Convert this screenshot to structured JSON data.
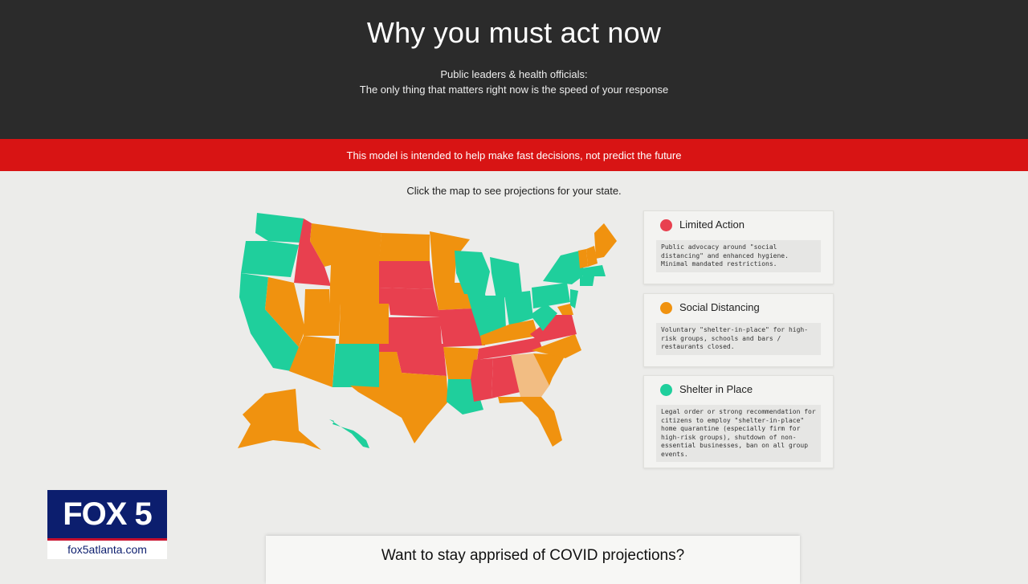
{
  "header": {
    "title": "Why you must act now",
    "subtitle_line1": "Public leaders & health officials:",
    "subtitle_line2": "The only thing that matters right now is the speed of your response"
  },
  "banner": {
    "text": "This model is intended to help make fast decisions, not predict the future"
  },
  "map": {
    "instruction": "Click the map to see projections for your state.",
    "colors": {
      "limited": "#e8404f",
      "social": "#f0920f",
      "shelter": "#1fcf9c",
      "pending": "#f2bd83"
    }
  },
  "legend": [
    {
      "title": "Limited Action",
      "color": "#e8404f",
      "description": "Public advocacy around \"social distancing\" and enhanced hygiene. Minimal mandated restrictions."
    },
    {
      "title": "Social Distancing",
      "color": "#f0920f",
      "description": "Voluntary \"shelter-in-place\" for high-risk groups, schools and bars / restaurants closed."
    },
    {
      "title": "Shelter in Place",
      "color": "#1fcf9c",
      "description": "Legal order or strong recommendation for citizens to employ \"shelter-in-place\" home quarantine (especially firm for high-risk groups), shutdown of non-essential businesses, ban on all group events."
    }
  ],
  "overlay": {
    "logo_text": "FOX 5",
    "logo_url": "fox5atlanta.com"
  },
  "subscribe": {
    "title": "Want to stay apprised of COVID projections?"
  }
}
